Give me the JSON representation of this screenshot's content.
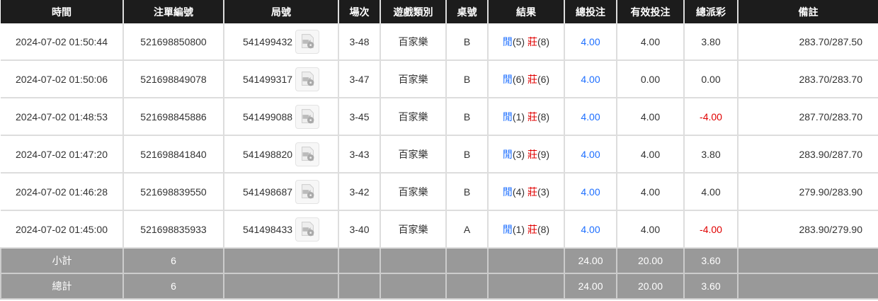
{
  "headers": [
    "時間",
    "注單編號",
    "局號",
    "場次",
    "遊戲類別",
    "桌號",
    "結果",
    "總投注",
    "有效投注",
    "總派彩",
    "備註"
  ],
  "player_label": "閒",
  "banker_label": "莊",
  "colors": {
    "header_bg": "#1c1c1c",
    "player": "#1e6fff",
    "banker": "#e00000",
    "footer_bg": "#999999"
  },
  "rows": [
    {
      "time": "2024-07-02 01:50:44",
      "bet_id": "521698850800",
      "game_id": "541499432",
      "round": "3-48",
      "game": "百家樂",
      "table": "B",
      "p": "(5)",
      "b": "(8)",
      "total": "4.00",
      "valid": "4.00",
      "payout": "3.80",
      "payout_neg": false,
      "note": "283.70/287.50"
    },
    {
      "time": "2024-07-02 01:50:06",
      "bet_id": "521698849078",
      "game_id": "541499317",
      "round": "3-47",
      "game": "百家樂",
      "table": "B",
      "p": "(6)",
      "b": "(6)",
      "total": "4.00",
      "valid": "0.00",
      "payout": "0.00",
      "payout_neg": false,
      "note": "283.70/283.70"
    },
    {
      "time": "2024-07-02 01:48:53",
      "bet_id": "521698845886",
      "game_id": "541499088",
      "round": "3-45",
      "game": "百家樂",
      "table": "B",
      "p": "(1)",
      "b": "(8)",
      "total": "4.00",
      "valid": "4.00",
      "payout": "-4.00",
      "payout_neg": true,
      "note": "287.70/283.70"
    },
    {
      "time": "2024-07-02 01:47:20",
      "bet_id": "521698841840",
      "game_id": "541498820",
      "round": "3-43",
      "game": "百家樂",
      "table": "B",
      "p": "(3)",
      "b": "(9)",
      "total": "4.00",
      "valid": "4.00",
      "payout": "3.80",
      "payout_neg": false,
      "note": "283.90/287.70"
    },
    {
      "time": "2024-07-02 01:46:28",
      "bet_id": "521698839550",
      "game_id": "541498687",
      "round": "3-42",
      "game": "百家樂",
      "table": "B",
      "p": "(4)",
      "b": "(3)",
      "total": "4.00",
      "valid": "4.00",
      "payout": "4.00",
      "payout_neg": false,
      "note": "279.90/283.90"
    },
    {
      "time": "2024-07-02 01:45:00",
      "bet_id": "521698835933",
      "game_id": "541498433",
      "round": "3-40",
      "game": "百家樂",
      "table": "A",
      "p": "(1)",
      "b": "(8)",
      "total": "4.00",
      "valid": "4.00",
      "payout": "-4.00",
      "payout_neg": true,
      "note": "283.90/279.90"
    }
  ],
  "footer": [
    {
      "label": "小計",
      "count": "6",
      "total": "24.00",
      "valid": "20.00",
      "payout": "3.60"
    },
    {
      "label": "總計",
      "count": "6",
      "total": "24.00",
      "valid": "20.00",
      "payout": "3.60"
    }
  ]
}
